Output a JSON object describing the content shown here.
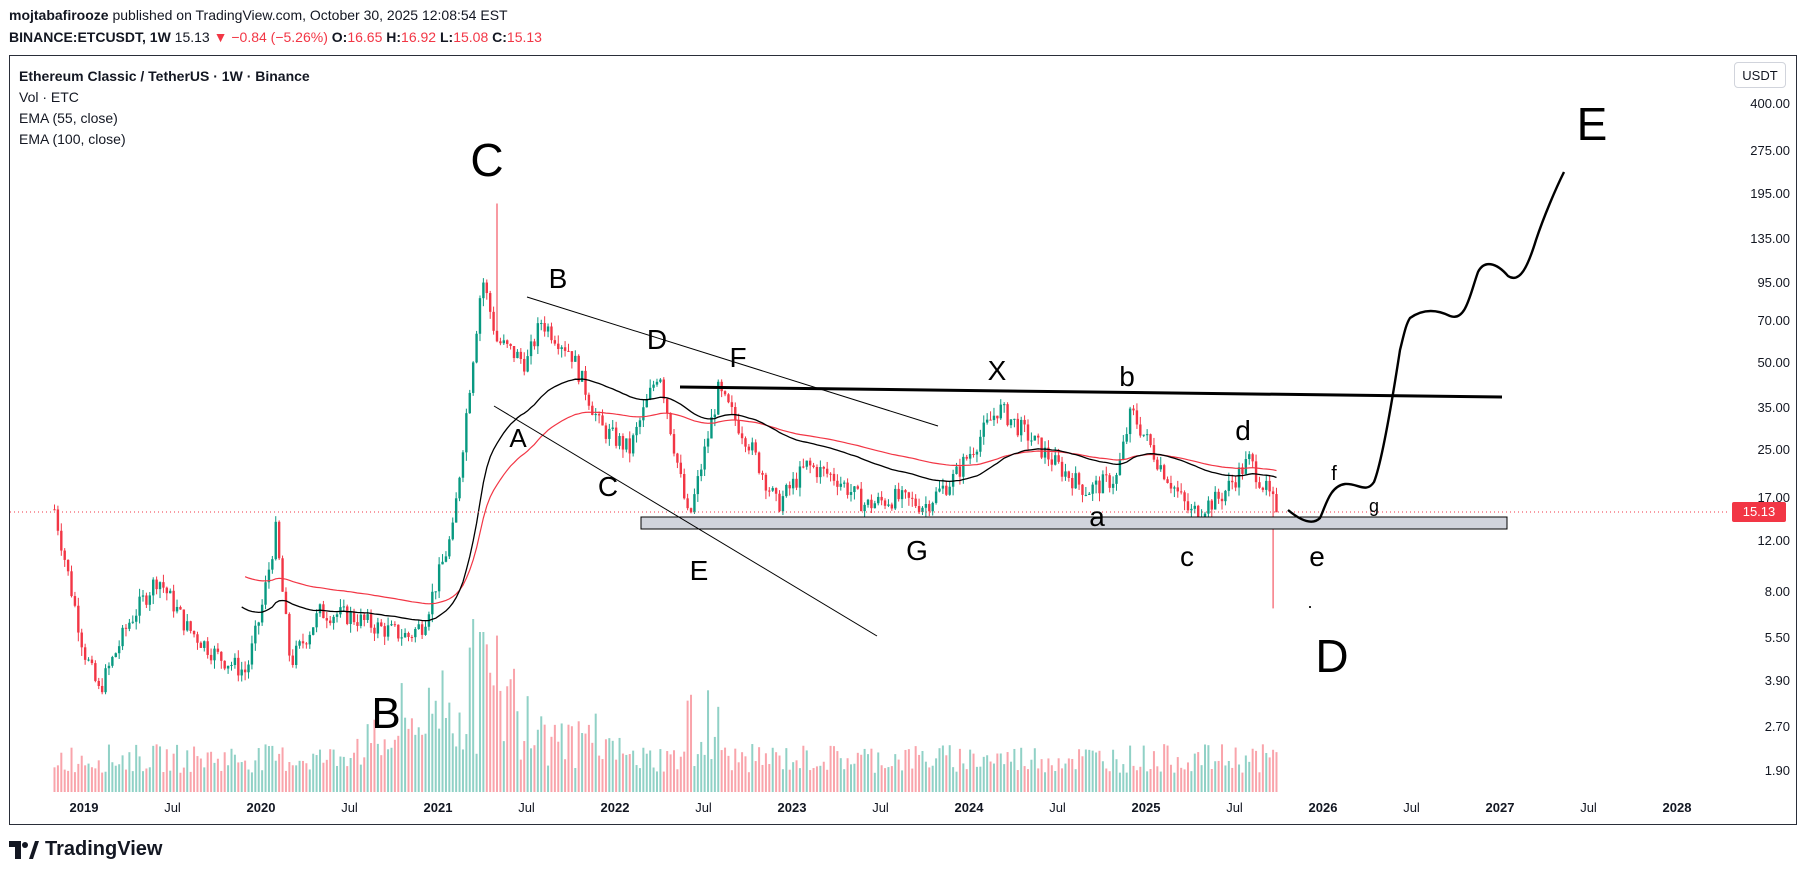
{
  "header": {
    "author": "mojtabafirooze",
    "published": " published on TradingView.com, October 30, 2025 12:08:54 EST",
    "symbol": "BINANCE:ETCUSDT, 1W",
    "last": "15.13",
    "change": "−0.84 (−5.26%)",
    "open_label": "O:",
    "open": "16.65",
    "high_label": "H:",
    "high": "16.92",
    "low_label": "L:",
    "low": "15.08",
    "close_label": "C:",
    "close": "15.13"
  },
  "legend": {
    "title": "Ethereum Classic / TetherUS · 1W · Binance",
    "vol": "Vol · ETC",
    "ema55": "EMA (55, close)",
    "ema100": "EMA (100, close)"
  },
  "currency_button": "USDT",
  "current_price": "15.13",
  "brand": "TradingView",
  "colors": {
    "up": "#089981",
    "down": "#f23645",
    "ema55": "#000000",
    "ema100": "#f23645",
    "support_zone": "#d1d4dc"
  },
  "chart_data": {
    "type": "candlestick",
    "title": "Ethereum Classic / TetherUS · 1W · Binance",
    "x_ticks": [
      "2019",
      "Jul",
      "2020",
      "Jul",
      "2021",
      "Jul",
      "2022",
      "Jul",
      "2023",
      "Jul",
      "2024",
      "Jul",
      "2025",
      "Jul",
      "2026",
      "Jul",
      "2027",
      "Jul",
      "2028"
    ],
    "y_ticks": [
      "400.00",
      "275.00",
      "195.00",
      "135.00",
      "95.00",
      "70.00",
      "50.00",
      "35.00",
      "25.00",
      "17.00",
      "12.00",
      "8.00",
      "5.50",
      "3.90",
      "2.70",
      "1.90"
    ],
    "y_scale": "log",
    "ylim": [
      1.7,
      480
    ],
    "price_path": [
      [
        "2018-11",
        15.5
      ],
      [
        "2019-01",
        5.0
      ],
      [
        "2019-02",
        3.6
      ],
      [
        "2019-04",
        6.2
      ],
      [
        "2019-06",
        9.0
      ],
      [
        "2019-08",
        6.0
      ],
      [
        "2019-10",
        4.8
      ],
      [
        "2019-12",
        4.2
      ],
      [
        "2020-01",
        6.8
      ],
      [
        "2020-02",
        13.0
      ],
      [
        "2020-03",
        4.5
      ],
      [
        "2020-05",
        6.8
      ],
      [
        "2020-07",
        6.6
      ],
      [
        "2020-09",
        6.0
      ],
      [
        "2020-11",
        5.6
      ],
      [
        "2020-12",
        6.2
      ],
      [
        "2021-02",
        13.0
      ],
      [
        "2021-04",
        100.0
      ],
      [
        "2021-05",
        60.0
      ],
      [
        "2021-07",
        50.0
      ],
      [
        "2021-08",
        70.0
      ],
      [
        "2021-10",
        55.0
      ],
      [
        "2021-12",
        30.0
      ],
      [
        "2022-02",
        25.0
      ],
      [
        "2022-04",
        48.0
      ],
      [
        "2022-06",
        14.0
      ],
      [
        "2022-08",
        40.0
      ],
      [
        "2022-10",
        27.0
      ],
      [
        "2022-12",
        16.0
      ],
      [
        "2023-02",
        22.0
      ],
      [
        "2023-04",
        20.0
      ],
      [
        "2023-06",
        16.0
      ],
      [
        "2023-08",
        17.0
      ],
      [
        "2023-10",
        16.0
      ],
      [
        "2023-12",
        20.0
      ],
      [
        "2024-03",
        35.0
      ],
      [
        "2024-05",
        28.0
      ],
      [
        "2024-07",
        22.0
      ],
      [
        "2024-09",
        18.0
      ],
      [
        "2024-11",
        20.0
      ],
      [
        "2024-12",
        34.0
      ],
      [
        "2025-02",
        22.0
      ],
      [
        "2025-04",
        15.0
      ],
      [
        "2025-06",
        17.0
      ],
      [
        "2025-08",
        23.0
      ],
      [
        "2025-10",
        15.13
      ]
    ],
    "volume_peak_date": "2021-04",
    "levels": {
      "resistance": 40,
      "support_zone": [
        13.6,
        14.8
      ],
      "low_wick": 7.0,
      "all_time_high": 180
    },
    "annotations": [
      "C",
      "B",
      "A",
      "B",
      "C",
      "D",
      "E",
      "F",
      "G",
      "X",
      "a",
      "b",
      "c",
      "d",
      "e",
      "f",
      "g",
      "D",
      "E",
      "."
    ]
  }
}
